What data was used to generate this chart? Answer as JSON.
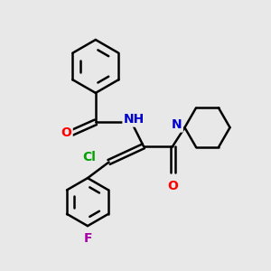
{
  "bg_color": "#e8e8e8",
  "line_color": "#000000",
  "bond_lw": 1.8,
  "atom_colors": {
    "O": "#ff0000",
    "N": "#0000cd",
    "Cl": "#00a000",
    "F": "#aa00aa",
    "C": "#000000"
  },
  "font_size": 10,
  "font_size_small": 9
}
